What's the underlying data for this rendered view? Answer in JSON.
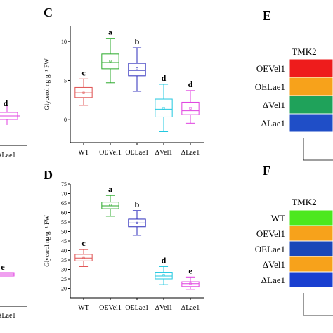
{
  "chart_data": [
    {
      "panel": "C",
      "type": "box",
      "ylabel": "Glycerol ng·g⁻¹ FW",
      "ylim": [
        -3,
        12
      ],
      "yticks": [
        0,
        5,
        10
      ],
      "categories": [
        "WT",
        "OEVel1",
        "OELae1",
        "ΔVel1",
        "ΔLae1"
      ],
      "colors": [
        "#e05050",
        "#2aaa2a",
        "#2b2bbb",
        "#22c8e0",
        "#e040e0"
      ],
      "boxes": [
        {
          "min": 1.8,
          "q1": 2.8,
          "median": 3.4,
          "mean": 3.4,
          "q3": 4.1,
          "max": 5.2
        },
        {
          "min": 4.7,
          "q1": 6.5,
          "median": 7.3,
          "mean": 7.5,
          "q3": 8.4,
          "max": 10.4
        },
        {
          "min": 3.6,
          "q1": 5.6,
          "median": 6.3,
          "mean": 6.5,
          "q3": 7.2,
          "max": 9.2
        },
        {
          "min": -1.6,
          "q1": 0.3,
          "median": 1.3,
          "mean": 1.4,
          "q3": 2.6,
          "max": 4.5
        },
        {
          "min": -0.5,
          "q1": 0.6,
          "median": 1.1,
          "mean": 1.4,
          "q3": 2.2,
          "max": 3.7
        }
      ],
      "letters": [
        "c",
        "a",
        "b",
        "d",
        "d"
      ]
    },
    {
      "panel": "D",
      "type": "box",
      "ylabel": "Glycerol ng·g⁻¹ FW",
      "ylim": [
        15,
        75
      ],
      "yticks": [
        20,
        25,
        30,
        35,
        40,
        45,
        50,
        55,
        60,
        65,
        70,
        75
      ],
      "categories": [
        "WT",
        "OEVel1",
        "OELae1",
        "ΔVel1",
        "ΔLae1"
      ],
      "colors": [
        "#e05050",
        "#2aaa2a",
        "#2b2bbb",
        "#22c8e0",
        "#e040e0"
      ],
      "boxes": [
        {
          "min": 31.5,
          "q1": 34.5,
          "median": 36.0,
          "mean": 36.0,
          "q3": 38.0,
          "max": 40.5
        },
        {
          "min": 58.0,
          "q1": 62.0,
          "median": 63.5,
          "mean": 64.0,
          "q3": 65.5,
          "max": 69.0
        },
        {
          "min": 48.0,
          "q1": 52.5,
          "median": 54.5,
          "mean": 54.5,
          "q3": 56.5,
          "max": 61.0
        },
        {
          "min": 22.0,
          "q1": 25.0,
          "median": 26.5,
          "mean": 27.0,
          "q3": 28.5,
          "max": 31.5
        },
        {
          "min": 19.5,
          "q1": 21.0,
          "median": 22.5,
          "mean": 22.5,
          "q3": 23.5,
          "max": 26.0
        }
      ],
      "letters": [
        "c",
        "a",
        "b",
        "d",
        "e"
      ]
    },
    {
      "panel": "E",
      "type": "heatmap",
      "title": "TMK2",
      "rows": [
        "OEVel1",
        "OELae1",
        "ΔVel1",
        "ΔLae1"
      ],
      "colors": [
        "#ee1c1c",
        "#f7a21b",
        "#1fa25a",
        "#1f4ec7"
      ]
    },
    {
      "panel": "F",
      "type": "heatmap",
      "title": "TMK2",
      "rows": [
        "WT",
        "OEVel1",
        "OELae1",
        "ΔVel1",
        "ΔLae1"
      ],
      "colors": [
        "#4ce81e",
        "#f7a21b",
        "#1a47b8",
        "#f7a21b",
        "#1a3fd0"
      ]
    }
  ],
  "partial_left": {
    "upper": {
      "letter": "d",
      "tick": "ΔLae1",
      "color": "#e040e0"
    },
    "lower": {
      "letter": "e",
      "tick": "ΔLae1",
      "color": "#e040e0"
    }
  }
}
